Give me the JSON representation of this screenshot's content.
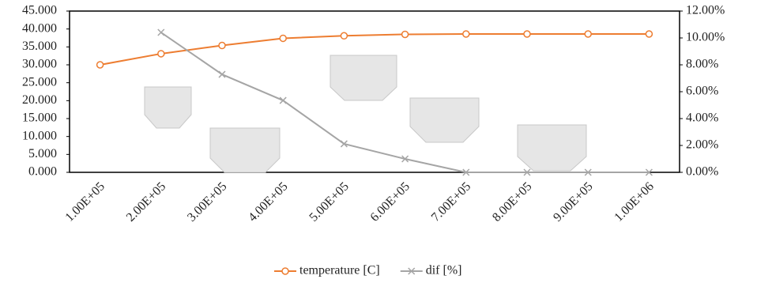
{
  "chart_data": {
    "type": "line",
    "categories": [
      "1.00E+05",
      "2.00E+05",
      "3.00E+05",
      "4.00E+05",
      "5.00E+05",
      "6.00E+05",
      "7.00E+05",
      "8.00E+05",
      "9.00E+05",
      "1.00E+06"
    ],
    "series": [
      {
        "name": "temperature [C]",
        "color": "#ed7d31",
        "marker": "circle",
        "values": [
          30.0,
          33.1,
          35.4,
          37.4,
          38.1,
          38.5,
          38.6,
          38.6,
          38.6,
          38.6
        ]
      },
      {
        "name": "dif [%]",
        "color": "#a5a5a5",
        "marker": "x",
        "axis": "y2",
        "values": [
          null,
          10.41,
          7.29,
          5.35,
          2.12,
          1.0,
          0.0,
          0.0,
          0.0,
          0.0
        ]
      }
    ],
    "ylim": [
      0,
      45
    ],
    "yticks": [
      {
        "value": 0,
        "label": "0.000"
      },
      {
        "value": 5,
        "label": "5.000"
      },
      {
        "value": 10,
        "label": "10.000"
      },
      {
        "value": 15,
        "label": "15.000"
      },
      {
        "value": 20,
        "label": "20.000"
      },
      {
        "value": 25,
        "label": "25.000"
      },
      {
        "value": 30,
        "label": "30.000"
      },
      {
        "value": 35,
        "label": "35.000"
      },
      {
        "value": 40,
        "label": "40.000"
      },
      {
        "value": 45,
        "label": "45.000"
      }
    ],
    "y2lim": [
      0,
      12
    ],
    "y2ticks": [
      {
        "value": 0,
        "label": "0.00%"
      },
      {
        "value": 2,
        "label": "2.00%"
      },
      {
        "value": 4,
        "label": "4.00%"
      },
      {
        "value": 6,
        "label": "6.00%"
      },
      {
        "value": 8,
        "label": "8.00%"
      },
      {
        "value": 10,
        "label": "10.00%"
      },
      {
        "value": 12,
        "label": "12.00%"
      }
    ],
    "legend": "bottom"
  }
}
